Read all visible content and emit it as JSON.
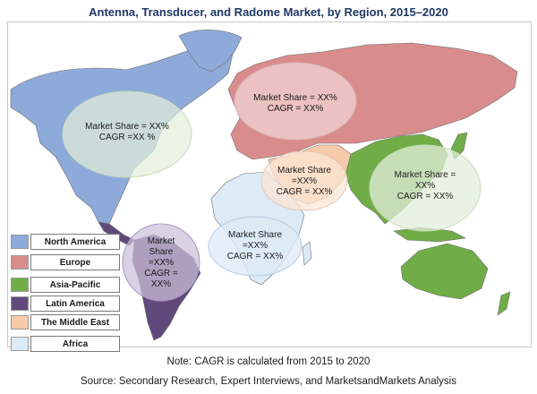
{
  "title": "Antenna, Transducer, and Radome Market, by Region, 2015–2020",
  "colors": {
    "north_america": "#8eaadb",
    "europe": "#d98c8c",
    "asia_pacific": "#70ad47",
    "latin_america": "#604a7b",
    "middle_east": "#f7caac",
    "africa": "#ddebf7",
    "border": "#7f7f7f"
  },
  "legend": [
    {
      "label": "North America",
      "color": "#8eaadb"
    },
    {
      "label": "Europe",
      "color": "#d98c8c"
    },
    {
      "label": "Asia-Pacific",
      "color": "#70ad47"
    },
    {
      "label": "Latin America",
      "color": "#604a7b"
    },
    {
      "label": "The Middle East",
      "color": "#f7caac"
    },
    {
      "label": "Africa",
      "color": "#ddebf7"
    }
  ],
  "callouts": {
    "north_america": "Market Share = XX%\nCAGR =XX %",
    "europe": "Market Share = XX%\nCAGR = XX%",
    "middle_east": "Market Share\n=XX%\nCAGR = XX%",
    "asia_pacific": "Market Share =\nXX%\nCAGR = XX%",
    "africa": "Market Share\n=XX%\nCAGR = XX%",
    "latin_america": "Market\nShare\n=XX%\nCAGR =\nXX%"
  },
  "note": "Note: CAGR is calculated from 2015 to 2020",
  "source": "Source: Secondary Research, Expert Interviews, and MarketsandMarkets Analysis"
}
